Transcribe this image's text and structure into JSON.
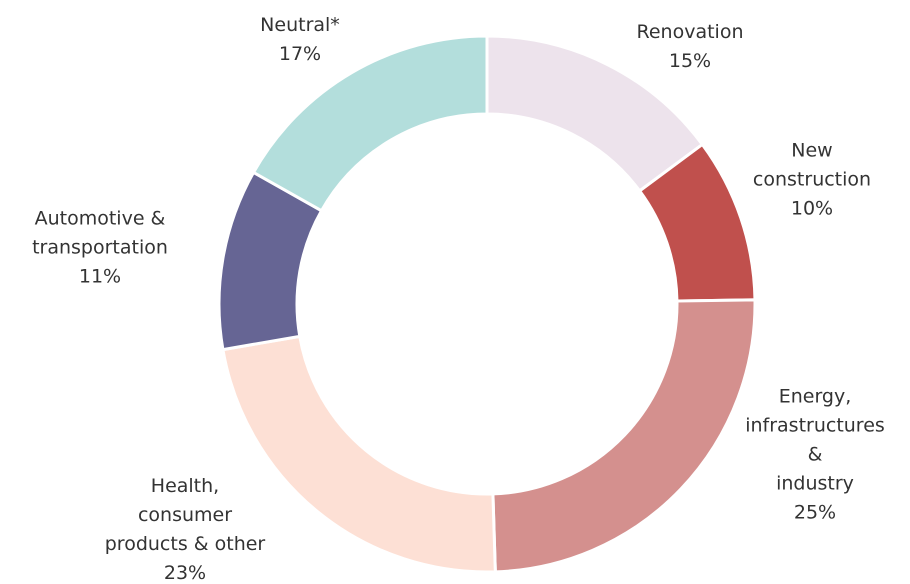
{
  "chart_data": {
    "type": "donut",
    "categories": [
      "Renovation",
      "New\nconstruction",
      "Energy,\ninfrastructures &\nindustry",
      "Health,\nconsumer\nproducts & other",
      "Automotive &\ntransportation",
      "Neutral*"
    ],
    "values": [
      15,
      10,
      25,
      23,
      11,
      17
    ],
    "value_labels": [
      "15%",
      "10%",
      "25%",
      "23%",
      "11%",
      "17%"
    ],
    "colors": [
      "#ede3ec",
      "#c0504d",
      "#d4908e",
      "#fde0d5",
      "#666594",
      "#b3dedc"
    ]
  }
}
